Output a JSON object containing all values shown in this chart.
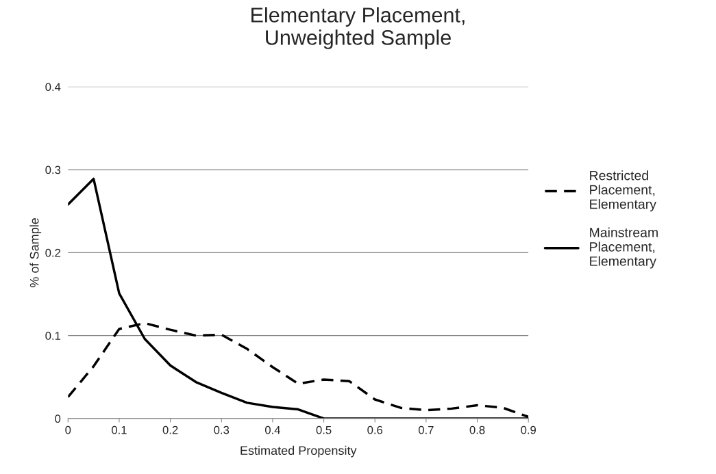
{
  "chart_data": {
    "type": "line",
    "title": "Elementary Placement,\nUnweighted Sample",
    "xlabel": "Estimated Propensity",
    "ylabel": "% of Sample",
    "x": [
      0,
      0.05,
      0.1,
      0.15,
      0.2,
      0.25,
      0.3,
      0.35,
      0.4,
      0.45,
      0.5,
      0.55,
      0.6,
      0.65,
      0.7,
      0.75,
      0.8,
      0.85,
      0.9
    ],
    "series": [
      {
        "name": "Restricted Placement, Elementary",
        "color": "#000000",
        "line_style": "dashed",
        "values": [
          0.026,
          0.063,
          0.108,
          0.115,
          0.107,
          0.1,
          0.101,
          0.084,
          0.062,
          0.042,
          0.047,
          0.045,
          0.023,
          0.013,
          0.01,
          0.012,
          0.016,
          0.013,
          0.002
        ]
      },
      {
        "name": "Mainstream Placement, Elementary",
        "color": "#000000",
        "line_style": "solid",
        "values": [
          0.258,
          0.289,
          0.151,
          0.096,
          0.064,
          0.044,
          0.031,
          0.019,
          0.014,
          0.011,
          0,
          0,
          0,
          0,
          0,
          0,
          0,
          0,
          0
        ]
      }
    ],
    "xlim": [
      0,
      0.9
    ],
    "xticks": [
      0,
      0.1,
      0.2,
      0.3,
      0.4,
      0.5,
      0.6,
      0.7,
      0.8,
      0.9
    ],
    "ylim": [
      0,
      0.4
    ],
    "yticks": [
      0,
      0.1,
      0.2,
      0.3,
      0.4
    ],
    "grid": "y",
    "legend": "right",
    "marker": "none"
  }
}
